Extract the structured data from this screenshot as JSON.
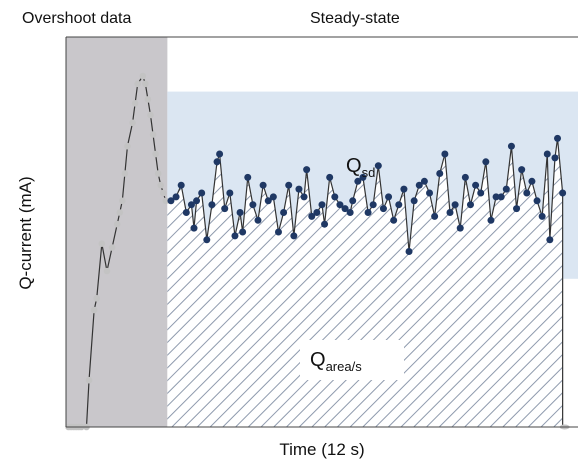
{
  "chart_data": {
    "type": "line",
    "region_labels": {
      "overshoot": "Overshoot data",
      "steady": "Steady-state"
    },
    "xlabel": "Time (12 s)",
    "ylabel": "Q-current (mA)",
    "annotations": {
      "sd": {
        "main": "Q",
        "sub": "sd"
      },
      "area": {
        "main": "Q",
        "sub": "area/s"
      }
    },
    "grid": false,
    "legend": "none",
    "xlim": [
      0,
      100
    ],
    "ylim": [
      0,
      100
    ],
    "sd_band": [
      38,
      86
    ],
    "steady_start_x": 19.8,
    "colors": {
      "overshoot_bg": "#c9c7cb",
      "sd_band": "#dbe6f2",
      "hatch": "#8e9aad",
      "overshoot_points": "#c3c3c3",
      "steady_points": "#1f3864",
      "line": "#333333"
    },
    "overshoot_series": {
      "x": [
        0.5,
        1.0,
        1.5,
        2.0,
        2.5,
        3.0,
        4.0,
        4.5,
        5.5,
        6.0,
        7.0,
        8.0,
        9.0,
        10.0,
        10.5,
        11.0,
        11.5,
        12.0,
        13.0,
        13.5,
        14.0,
        15.0,
        15.5,
        16.0,
        16.5,
        17.0,
        17.5,
        18.0,
        18.5,
        19.0,
        19.5
      ],
      "y": [
        0,
        0,
        0,
        0,
        0,
        0,
        0,
        12,
        30,
        33,
        47,
        40,
        46,
        52,
        55,
        58,
        65,
        72,
        78,
        83,
        88,
        90,
        88,
        84,
        80,
        75,
        70,
        65,
        62,
        60,
        58
      ]
    },
    "steady_series": {
      "x": [
        20.5,
        21.5,
        22.5,
        23.5,
        24.5,
        25.0,
        25.5,
        26.5,
        27.5,
        28.5,
        29.5,
        30.0,
        31.0,
        32.0,
        33.0,
        34.0,
        34.5,
        35.5,
        36.5,
        37.5,
        38.5,
        39.5,
        40.5,
        41.5,
        42.5,
        43.5,
        44.5,
        45.5,
        46.5,
        47.0,
        48.0,
        49.0,
        50.0,
        50.5,
        51.5,
        52.5,
        53.5,
        54.5,
        55.5,
        56.0,
        57.0,
        58.0,
        59.0,
        60.0,
        61.0,
        62.0,
        63.0,
        64.0,
        65.0,
        66.0,
        67.0,
        68.0,
        69.0,
        70.0,
        71.0,
        72.0,
        73.0,
        74.0,
        75.0,
        76.0,
        77.0,
        78.0,
        79.0,
        80.0,
        81.0,
        82.0,
        83.0,
        84.0,
        85.0,
        86.0,
        87.0,
        88.0,
        89.0,
        90.0,
        91.0,
        92.0,
        93.0,
        94.0,
        94.5,
        95.5,
        96.0,
        97.0
      ],
      "y": [
        58,
        59,
        62,
        55,
        57,
        51,
        58,
        60,
        48,
        57,
        68,
        70,
        56,
        60,
        49,
        55,
        50,
        64,
        57,
        53,
        62,
        58,
        59,
        50,
        55,
        62,
        49,
        61,
        59,
        66,
        54,
        55,
        57,
        52,
        64,
        59,
        57,
        56,
        55,
        58,
        63,
        64,
        55,
        57,
        67,
        56,
        59,
        53,
        57,
        61,
        45,
        58,
        62,
        63,
        60,
        54,
        65,
        70,
        55,
        57,
        51,
        64,
        57,
        62,
        60,
        68,
        53,
        59,
        59,
        61,
        72,
        56,
        66,
        60,
        63,
        58,
        54,
        70,
        48,
        69,
        74,
        60
      ]
    }
  }
}
